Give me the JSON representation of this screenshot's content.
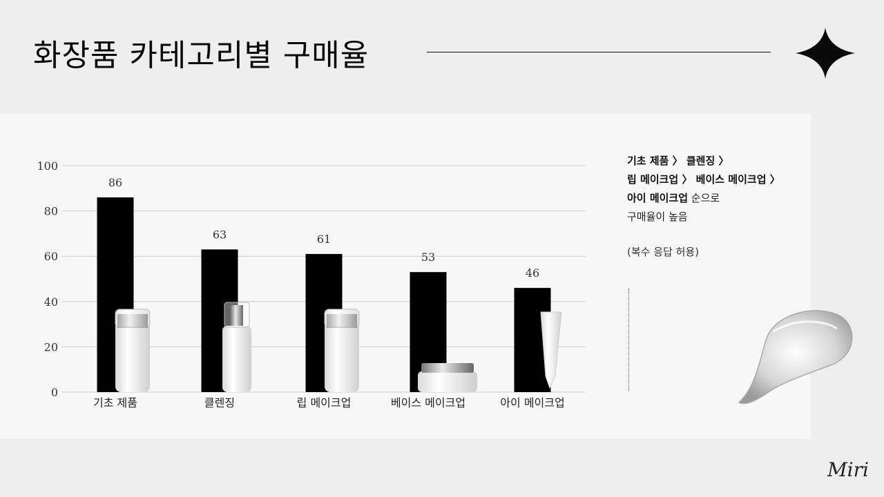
{
  "title": "화장품 카테고리별 구매율",
  "summary": {
    "line1_bold": "기초 제품 〉 클렌징 〉",
    "line2_bold": "립 메이크업 〉 베이스 메이크업 〉",
    "line3_bold": "아이 메이크업",
    "line3_rest": " 순으로",
    "line4": "구매율이 높음"
  },
  "note": "(복수 응답 허용)",
  "signature": "Miri",
  "colors": {
    "bar": "#000000",
    "grid": "#cccccc",
    "background": "#eeeeee",
    "panel": "#f7f7f7"
  },
  "icons": {
    "sparkle": "four-point-star-icon",
    "gel": "gel-swatch-icon"
  },
  "chart_data": {
    "type": "bar",
    "categories": [
      "기초 제품",
      "클렌징",
      "립 메이크업",
      "베이스 메이크업",
      "아이 메이크업"
    ],
    "values": [
      86,
      63,
      61,
      53,
      46
    ],
    "yticks": [
      0,
      20,
      40,
      60,
      80,
      100
    ],
    "ylim": [
      0,
      100
    ],
    "grid": true,
    "title": "",
    "xlabel": "",
    "ylabel": ""
  }
}
